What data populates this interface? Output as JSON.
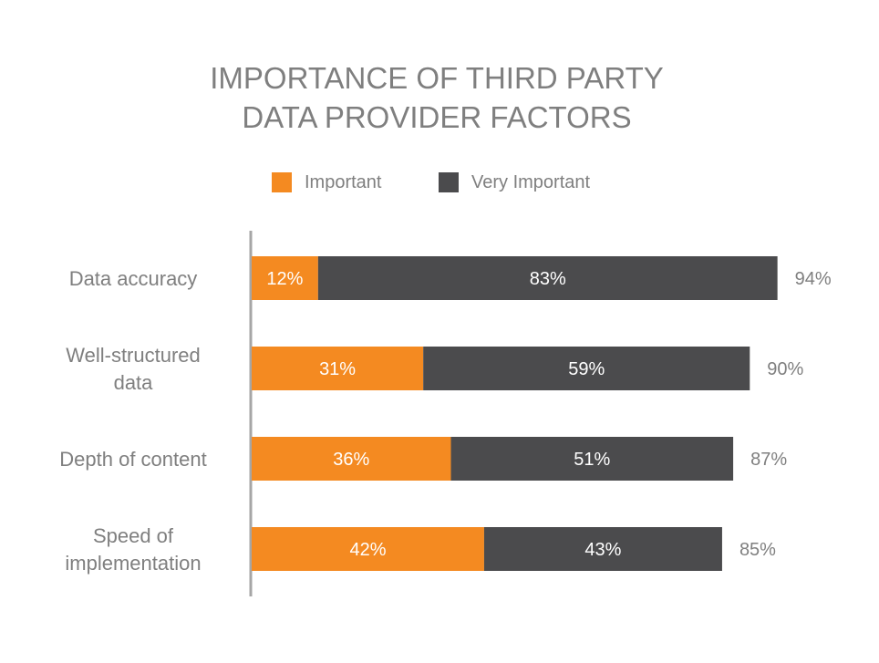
{
  "chart_data": {
    "type": "bar",
    "stacked": true,
    "orientation": "horizontal",
    "title_lines": [
      "IMPORTANCE OF THIRD PARTY",
      "DATA PROVIDER FACTORS"
    ],
    "legend": [
      {
        "name": "Important",
        "color": "#F48A21"
      },
      {
        "name": "Very Important",
        "color": "#4B4B4D"
      }
    ],
    "legend_position": "top",
    "categories": [
      [
        "Data accuracy"
      ],
      [
        "Well-structured",
        "data"
      ],
      [
        "Depth of content"
      ],
      [
        "Speed of",
        "implementation"
      ]
    ],
    "series": [
      {
        "name": "Important",
        "values": [
          12,
          31,
          36,
          42
        ],
        "labels": [
          "12%",
          "31%",
          "36%",
          "42%"
        ]
      },
      {
        "name": "Very Important",
        "values": [
          83,
          59,
          51,
          43
        ],
        "labels": [
          "83%",
          "59%",
          "51%",
          "43%"
        ]
      }
    ],
    "totals": [
      94,
      90,
      87,
      85
    ],
    "total_labels": [
      "94%",
      "90%",
      "87%",
      "85%"
    ],
    "xlim": [
      0,
      100
    ],
    "grid": false
  }
}
